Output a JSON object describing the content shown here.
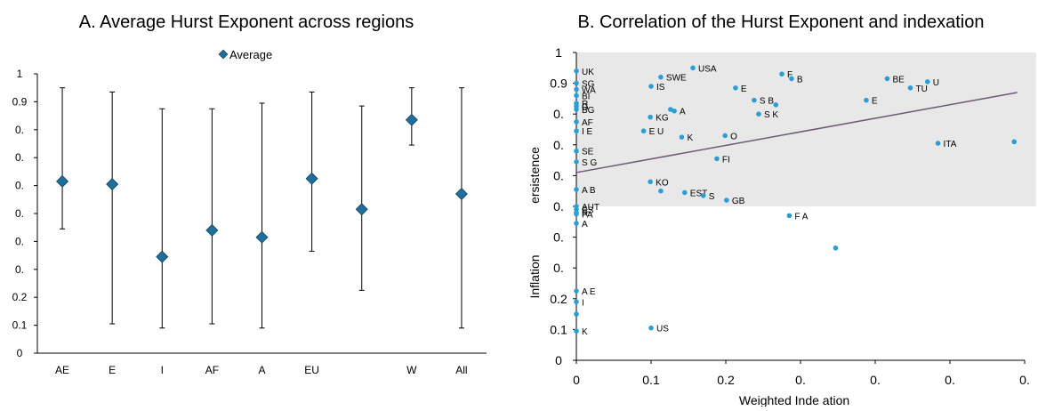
{
  "chart_data": [
    {
      "type": "scatter",
      "title": "A. Average Hurst Exponent across regions",
      "legend": {
        "label": "Average",
        "placement": "top-center"
      },
      "marker_color": "#1f6f9c",
      "categories": [
        "AE",
        "E",
        "I",
        "AF",
        "A",
        "EU",
        "",
        "W",
        "All"
      ],
      "series": [
        {
          "name": "Average",
          "values": [
            0.615,
            0.605,
            0.345,
            0.44,
            0.415,
            0.625,
            0.515,
            0.835,
            0.57
          ],
          "low": [
            0.445,
            0.105,
            0.09,
            0.105,
            0.09,
            0.365,
            0.225,
            0.745,
            0.09
          ],
          "high": [
            0.95,
            0.935,
            0.875,
            0.875,
            0.895,
            0.935,
            0.885,
            0.95,
            0.95
          ]
        }
      ],
      "ylim": [
        0,
        1
      ],
      "yticks": [
        0,
        0.1,
        0.2,
        0.3,
        0.4,
        0.5,
        0.6,
        0.7,
        0.8,
        0.9,
        1
      ],
      "ytick_labels": [
        "0",
        "0.1",
        "0.2",
        "0.",
        "0.",
        "0.",
        "0.",
        "0.",
        "0.",
        "0.9",
        "1"
      ],
      "grid": false
    },
    {
      "type": "scatter",
      "title": "B. Correlation of the Hurst Exponent and indexation",
      "xlabel": "Weighted Inde ation",
      "ylabel_left": "Inflation",
      "ylabel_right": "ersistence",
      "point_color": "#2a9fd6",
      "trend_color": "#6b5b73",
      "shade_color": "#e8e8e8",
      "shaded_y_range": [
        0.5,
        1
      ],
      "xlim": [
        0,
        0.6
      ],
      "ylim": [
        0,
        1
      ],
      "xticks": [
        0,
        0.1,
        0.2,
        0.3,
        0.4,
        0.5,
        0.6
      ],
      "xtick_labels": [
        "0",
        "0.1",
        "0.2",
        "0.",
        "0.",
        "0.",
        "0."
      ],
      "yticks": [
        0,
        0.1,
        0.2,
        0.3,
        0.4,
        0.5,
        0.6,
        0.7,
        0.8,
        0.9,
        1
      ],
      "ytick_labels": [
        "0",
        "0.1",
        "0.2",
        "0.",
        "0.",
        "0.",
        "0.",
        "0.",
        "0.",
        "0.9",
        "1"
      ],
      "trendline": {
        "x": [
          0,
          0.59
        ],
        "y": [
          0.61,
          0.87
        ]
      },
      "points": [
        {
          "x": 0.0,
          "y": 0.94,
          "label": "UK"
        },
        {
          "x": 0.0,
          "y": 0.9,
          "label": "SG"
        },
        {
          "x": 0.0,
          "y": 0.88,
          "label": "WA"
        },
        {
          "x": 0.0,
          "y": 0.86,
          "label": "BI"
        },
        {
          "x": 0.0,
          "y": 0.835,
          "label": "R"
        },
        {
          "x": 0.0,
          "y": 0.825,
          "label": "G"
        },
        {
          "x": 0.0,
          "y": 0.815,
          "label": "BG"
        },
        {
          "x": 0.0,
          "y": 0.775,
          "label": "AF"
        },
        {
          "x": 0.0,
          "y": 0.745,
          "label": "I  E"
        },
        {
          "x": 0.0,
          "y": 0.68,
          "label": "SE"
        },
        {
          "x": 0.0,
          "y": 0.645,
          "label": "S    G"
        },
        {
          "x": 0.0,
          "y": 0.555,
          "label": "A  B"
        },
        {
          "x": 0.0,
          "y": 0.5,
          "label": "AUT"
        },
        {
          "x": 0.0,
          "y": 0.49,
          "label": "ES"
        },
        {
          "x": 0.0,
          "y": 0.48,
          "label": "R"
        },
        {
          "x": 0.0,
          "y": 0.475,
          "label": "PA"
        },
        {
          "x": 0.0,
          "y": 0.445,
          "label": "A"
        },
        {
          "x": 0.0,
          "y": 0.225,
          "label": "A  E"
        },
        {
          "x": 0.0,
          "y": 0.19,
          "label": "I"
        },
        {
          "x": 0.0,
          "y": 0.15,
          "label": ""
        },
        {
          "x": 0.0,
          "y": 0.095,
          "label": "K"
        },
        {
          "x": 0.1,
          "y": 0.89,
          "label": "IS"
        },
        {
          "x": 0.113,
          "y": 0.92,
          "label": "SWE"
        },
        {
          "x": 0.156,
          "y": 0.95,
          "label": "USA"
        },
        {
          "x": 0.275,
          "y": 0.93,
          "label": "F"
        },
        {
          "x": 0.288,
          "y": 0.915,
          "label": "B"
        },
        {
          "x": 0.416,
          "y": 0.915,
          "label": "BE"
        },
        {
          "x": 0.47,
          "y": 0.905,
          "label": "U"
        },
        {
          "x": 0.447,
          "y": 0.885,
          "label": "TU"
        },
        {
          "x": 0.213,
          "y": 0.885,
          "label": "E"
        },
        {
          "x": 0.238,
          "y": 0.845,
          "label": "S  B"
        },
        {
          "x": 0.267,
          "y": 0.83,
          "label": ""
        },
        {
          "x": 0.244,
          "y": 0.8,
          "label": "S  K"
        },
        {
          "x": 0.388,
          "y": 0.845,
          "label": "E"
        },
        {
          "x": 0.126,
          "y": 0.815,
          "label": ""
        },
        {
          "x": 0.131,
          "y": 0.81,
          "label": "A"
        },
        {
          "x": 0.099,
          "y": 0.79,
          "label": "KG"
        },
        {
          "x": 0.09,
          "y": 0.745,
          "label": "E  U"
        },
        {
          "x": 0.141,
          "y": 0.725,
          "label": "K"
        },
        {
          "x": 0.199,
          "y": 0.73,
          "label": "O"
        },
        {
          "x": 0.484,
          "y": 0.705,
          "label": "ITA"
        },
        {
          "x": 0.586,
          "y": 0.71,
          "label": ""
        },
        {
          "x": 0.188,
          "y": 0.655,
          "label": "FI"
        },
        {
          "x": 0.099,
          "y": 0.58,
          "label": "KO"
        },
        {
          "x": 0.113,
          "y": 0.55,
          "label": ""
        },
        {
          "x": 0.145,
          "y": 0.545,
          "label": "EST"
        },
        {
          "x": 0.17,
          "y": 0.535,
          "label": "S"
        },
        {
          "x": 0.201,
          "y": 0.52,
          "label": "GB"
        },
        {
          "x": 0.285,
          "y": 0.47,
          "label": "F  A"
        },
        {
          "x": 0.347,
          "y": 0.365,
          "label": ""
        },
        {
          "x": 0.1,
          "y": 0.105,
          "label": "US"
        }
      ],
      "grid": false
    }
  ]
}
